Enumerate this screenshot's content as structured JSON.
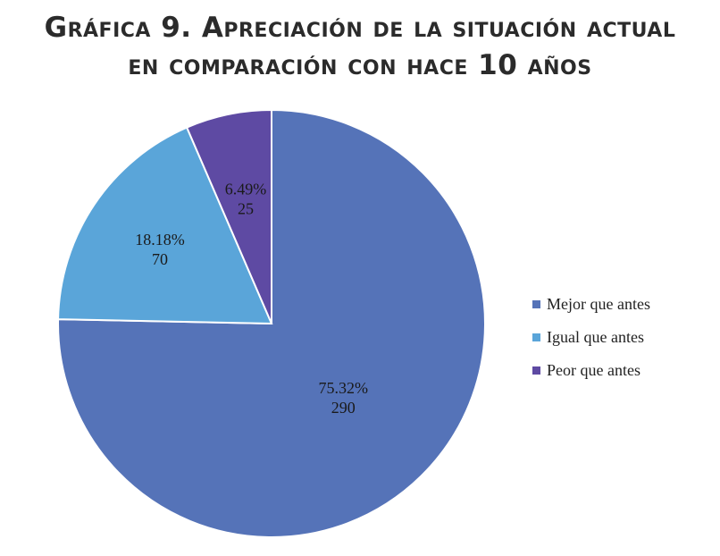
{
  "title": {
    "line1": "Gráfica 9. Apreciación de la situación actual",
    "line2": "en comparación con hace 10 años"
  },
  "chart_data": {
    "type": "pie",
    "title": "Gráfica 9. Apreciación de la situación actual en comparación con hace 10 años",
    "slices": [
      {
        "name": "Mejor que antes",
        "value": 290,
        "percent_label": "75.32%",
        "value_label": "290",
        "color": "#5573b8"
      },
      {
        "name": "Igual que antes",
        "value": 70,
        "percent_label": "18.18%",
        "value_label": "70",
        "color": "#5aa5d9"
      },
      {
        "name": "Peor que antes",
        "value": 25,
        "percent_label": "6.49%",
        "value_label": "25",
        "color": "#5e4aa3"
      }
    ],
    "start": "12 o'clock",
    "direction": "clockwise",
    "legend_position": "right"
  },
  "legend": {
    "items": [
      {
        "label": "Mejor que antes",
        "color": "#5573b8"
      },
      {
        "label": "Igual que antes",
        "color": "#5aa5d9"
      },
      {
        "label": "Peor que antes",
        "color": "#5e4aa3"
      }
    ]
  }
}
